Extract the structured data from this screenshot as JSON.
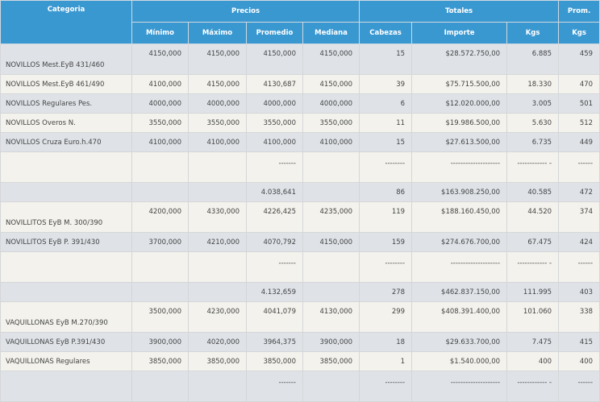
{
  "header": {
    "groups": [
      "Categoria",
      "Precios",
      "Totales",
      "Prom."
    ],
    "columns": [
      "Mínimo",
      "Máximo",
      "Promedio",
      "Mediana",
      "Cabezas",
      "Importe",
      "Kgs",
      "Kgs"
    ]
  },
  "rows": [
    {
      "tall": true,
      "cells": [
        "NOVILLOS Mest.EyB 431/460",
        "4150,000",
        "4150,000",
        "4150,000",
        "4150,000",
        "15",
        "$28.572.750,00",
        "6.885",
        "459"
      ]
    },
    {
      "cells": [
        "NOVILLOS Mest.EyB 461/490",
        "4100,000",
        "4150,000",
        "4130,687",
        "4150,000",
        "39",
        "$75.715.500,00",
        "18.330",
        "470"
      ]
    },
    {
      "cells": [
        "NOVILLOS Regulares Pes.",
        "4000,000",
        "4000,000",
        "4000,000",
        "4000,000",
        "6",
        "$12.020.000,00",
        "3.005",
        "501"
      ]
    },
    {
      "cells": [
        "NOVILLOS Overos N.",
        "3550,000",
        "3550,000",
        "3550,000",
        "3550,000",
        "11",
        "$19.986.500,00",
        "5.630",
        "512"
      ]
    },
    {
      "cells": [
        "NOVILLOS Cruza Euro.h.470",
        "4100,000",
        "4100,000",
        "4100,000",
        "4100,000",
        "15",
        "$27.613.500,00",
        "6.735",
        "449"
      ]
    },
    {
      "sep": true,
      "cells": [
        "",
        "",
        "",
        "-------",
        "",
        "--------",
        "--------------------",
        "------------ -",
        "------"
      ]
    },
    {
      "cells": [
        "",
        "",
        "",
        "4.038,641",
        "",
        "86",
        "$163.908.250,00",
        "40.585",
        "472"
      ]
    },
    {
      "tall": true,
      "cells": [
        "NOVILLITOS EyB M. 300/390",
        "4200,000",
        "4330,000",
        "4226,425",
        "4235,000",
        "119",
        "$188.160.450,00",
        "44.520",
        "374"
      ]
    },
    {
      "cells": [
        "NOVILLITOS EyB P. 391/430",
        "3700,000",
        "4210,000",
        "4070,792",
        "4150,000",
        "159",
        "$274.676.700,00",
        "67.475",
        "424"
      ]
    },
    {
      "sep": true,
      "cells": [
        "",
        "",
        "",
        "-------",
        "",
        "--------",
        "--------------------",
        "------------ -",
        "------"
      ]
    },
    {
      "cells": [
        "",
        "",
        "",
        "4.132,659",
        "",
        "278",
        "$462.837.150,00",
        "111.995",
        "403"
      ]
    },
    {
      "tall": true,
      "cells": [
        "VAQUILLONAS EyB M.270/390",
        "3500,000",
        "4230,000",
        "4041,079",
        "4130,000",
        "299",
        "$408.391.400,00",
        "101.060",
        "338"
      ]
    },
    {
      "cells": [
        "VAQUILLONAS EyB P.391/430",
        "3900,000",
        "4020,000",
        "3964,375",
        "3900,000",
        "18",
        "$29.633.700,00",
        "7.475",
        "415"
      ]
    },
    {
      "cells": [
        "VAQUILLONAS Regulares",
        "3850,000",
        "3850,000",
        "3850,000",
        "3850,000",
        "1",
        "$1.540.000,00",
        "400",
        "400"
      ]
    },
    {
      "sep": true,
      "cells": [
        "",
        "",
        "",
        "-------",
        "",
        "--------",
        "--------------------",
        "------------ -",
        "------"
      ]
    }
  ]
}
